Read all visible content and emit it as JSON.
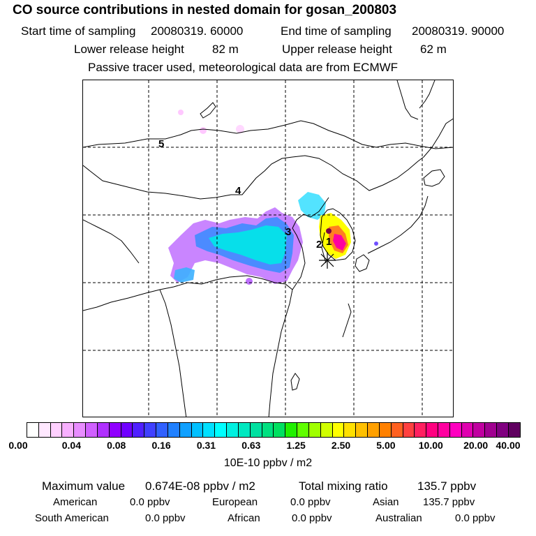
{
  "header": {
    "title": "CO  source contributions in nested domain for gosan_200803",
    "start_label": "Start time of sampling",
    "start_value": "20080319. 60000",
    "end_label": "End time of sampling",
    "end_value": "20080319. 90000",
    "lower_label": "Lower release height",
    "lower_value": "82 m",
    "upper_label": "Upper release height",
    "upper_value": "62 m",
    "note": "Passive tracer used, meteorological data are from ECMWF"
  },
  "map": {
    "region_labels": [
      "5",
      "4",
      "3",
      "2",
      "1"
    ],
    "receptor_marker": "asterisk-icon"
  },
  "colorbar": {
    "tick_labels": [
      "0.00",
      "0.04",
      "0.08",
      "0.16",
      "0.31",
      "0.63",
      "1.25",
      "2.50",
      "5.00",
      "10.00",
      "20.00",
      "40.00"
    ],
    "colors": [
      "#ffffff",
      "#ffe8ff",
      "#ffd0ff",
      "#f8b0ff",
      "#e88cff",
      "#d060ff",
      "#b030ff",
      "#9000ff",
      "#7000ff",
      "#5020ff",
      "#4040ff",
      "#3060ff",
      "#2080ff",
      "#10a0ff",
      "#00c0ff",
      "#00e0ff",
      "#00ffff",
      "#00f0e0",
      "#00e8c0",
      "#00e0a0",
      "#00e080",
      "#00e060",
      "#20f000",
      "#60ff00",
      "#a0ff00",
      "#d0ff00",
      "#ffff00",
      "#ffe000",
      "#ffc000",
      "#ffa000",
      "#ff8000",
      "#ff6020",
      "#ff4040",
      "#ff2060",
      "#ff0080",
      "#ff00a0",
      "#ff00c0",
      "#e000b0",
      "#c000a0",
      "#a00090",
      "#800080",
      "#600060"
    ],
    "units": "10E-10 ppbv / m2"
  },
  "stats": {
    "max_label": "Maximum value",
    "max_value": "0.674E-08 ppbv / m2",
    "total_label": "Total mixing ratio",
    "total_value": "135.7 ppbv",
    "american_label": "American",
    "american_value": "0.0 ppbv",
    "european_label": "European",
    "european_value": "0.0 ppbv",
    "asian_label": "Asian",
    "asian_value": "135.7 ppbv",
    "south_american_label": "South American",
    "south_american_value": "0.0 ppbv",
    "african_label": "African",
    "african_value": "0.0 ppbv",
    "australian_label": "Australian",
    "australian_value": "0.0 ppbv"
  }
}
